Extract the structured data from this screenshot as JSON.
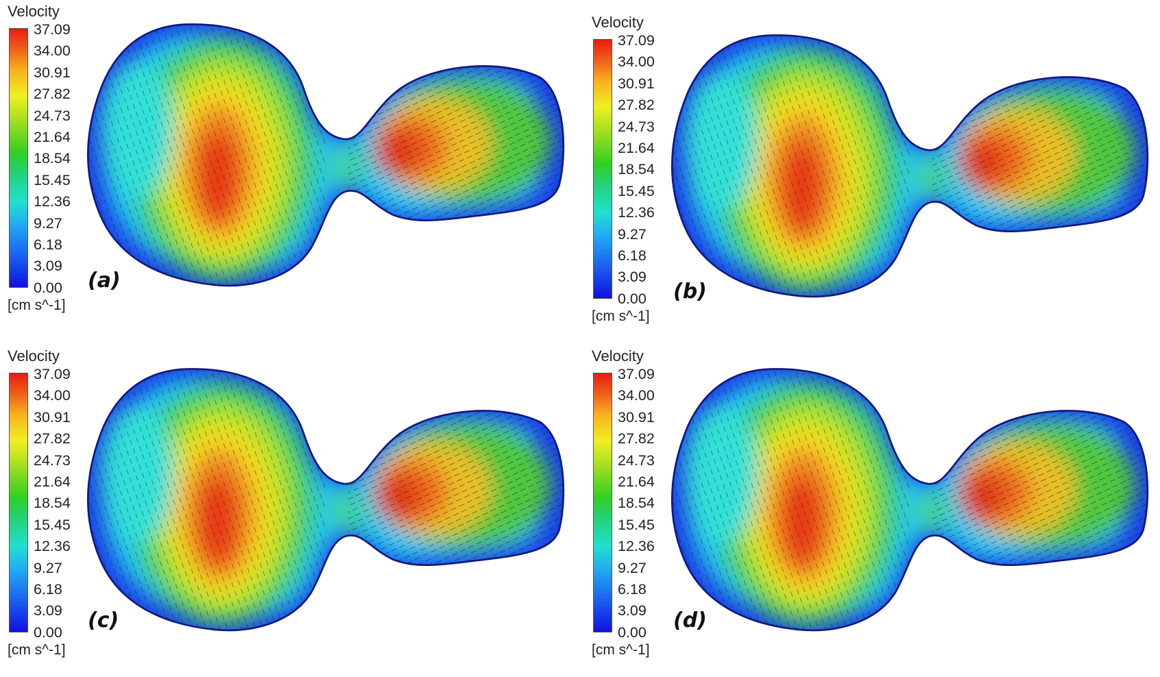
{
  "figure": {
    "panels": [
      {
        "label": "(a)"
      },
      {
        "label": "(b)"
      },
      {
        "label": "(c)"
      },
      {
        "label": "(d)"
      }
    ],
    "colorbar": {
      "title": "Velocity",
      "unit": "[cm s^-1]",
      "ticks": [
        "37.09",
        "34.00",
        "30.91",
        "27.82",
        "24.73",
        "21.64",
        "18.54",
        "15.45",
        "12.36",
        "9.27",
        "6.18",
        "3.09",
        "0.00"
      ]
    }
  },
  "chart_data": {
    "type": "heatmap",
    "title": "Velocity",
    "colorbar_label": "[cm s^-1]",
    "value_range": [
      0.0,
      37.09
    ],
    "colorbar_ticks": [
      37.09,
      34.0,
      30.91,
      27.82,
      24.73,
      21.64,
      18.54,
      15.45,
      12.36,
      9.27,
      6.18,
      3.09,
      0.0
    ],
    "colormap": [
      "#1010e0",
      "#22b0f0",
      "#30d020",
      "#f0f020",
      "#e81c10"
    ],
    "panels": [
      "(a)",
      "(b)",
      "(c)",
      "(d)"
    ],
    "overlay": "velocity vectors"
  }
}
